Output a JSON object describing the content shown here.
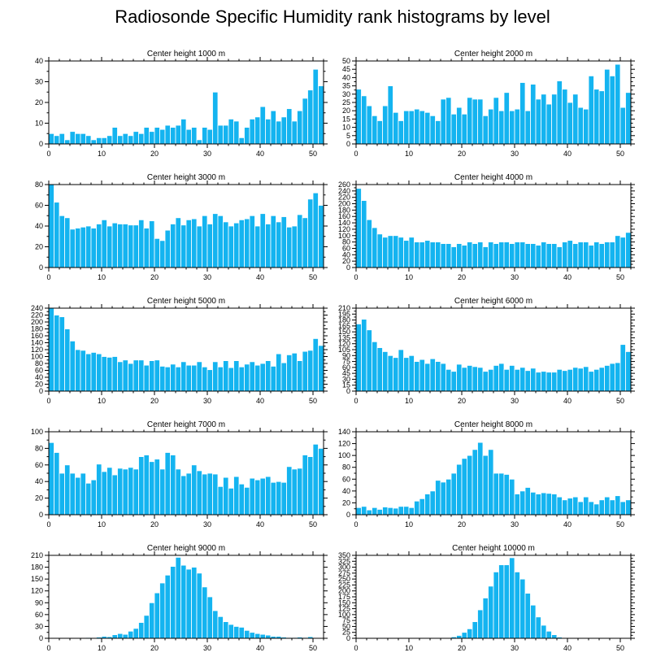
{
  "page": {
    "title": "Radiosonde Specific Humidity rank histograms by level"
  },
  "style": {
    "bar_color": "#14B4F0",
    "bar_edge": "#ffffff",
    "axis_color": "#000000"
  },
  "chart_data": [
    {
      "type": "bar",
      "title": "Center height 1000 m",
      "xlim": [
        0,
        52
      ],
      "xticks": [
        0,
        10,
        20,
        30,
        40,
        50
      ],
      "ylim": [
        0,
        40
      ],
      "yticks": [
        0,
        10,
        20,
        30,
        40
      ],
      "values": [
        5,
        4,
        5,
        2,
        6,
        5,
        5,
        4,
        2,
        3,
        3,
        4,
        8,
        4,
        5,
        4,
        6,
        5,
        8,
        6,
        8,
        7,
        9,
        8,
        9,
        12,
        7,
        8,
        2,
        8,
        7,
        25,
        9,
        9,
        12,
        11,
        3,
        8,
        12,
        13,
        18,
        12,
        16,
        11,
        13,
        17,
        11,
        16,
        22,
        26,
        36,
        28
      ]
    },
    {
      "type": "bar",
      "title": "Center height 2000 m",
      "xlim": [
        0,
        52
      ],
      "xticks": [
        0,
        10,
        20,
        30,
        40,
        50
      ],
      "ylim": [
        0,
        50
      ],
      "yticks": [
        0,
        5,
        10,
        15,
        20,
        25,
        30,
        35,
        40,
        45,
        50
      ],
      "values": [
        33,
        29,
        23,
        17,
        14,
        23,
        35,
        19,
        14,
        20,
        20,
        21,
        20,
        19,
        17,
        14,
        27,
        28,
        18,
        22,
        18,
        28,
        27,
        27,
        17,
        21,
        28,
        20,
        31,
        20,
        21,
        37,
        20,
        36,
        27,
        30,
        24,
        30,
        38,
        33,
        25,
        30,
        22,
        21,
        41,
        33,
        32,
        45,
        41,
        48,
        22,
        31
      ]
    },
    {
      "type": "bar",
      "title": "Center height 3000 m",
      "xlim": [
        0,
        52
      ],
      "xticks": [
        0,
        10,
        20,
        30,
        40,
        50
      ],
      "ylim": [
        0,
        80
      ],
      "yticks": [
        0,
        20,
        40,
        60,
        80
      ],
      "values": [
        80,
        63,
        50,
        48,
        37,
        38,
        39,
        40,
        38,
        42,
        46,
        40,
        43,
        42,
        42,
        41,
        41,
        46,
        38,
        45,
        28,
        26,
        36,
        42,
        48,
        41,
        46,
        47,
        40,
        50,
        42,
        52,
        50,
        44,
        40,
        43,
        46,
        47,
        50,
        40,
        52,
        42,
        50,
        44,
        49,
        39,
        40,
        51,
        48,
        66,
        72,
        60
      ]
    },
    {
      "type": "bar",
      "title": "Center height 4000 m",
      "xlim": [
        0,
        52
      ],
      "xticks": [
        0,
        10,
        20,
        30,
        40,
        50
      ],
      "ylim": [
        0,
        260
      ],
      "yticks": [
        0,
        20,
        40,
        60,
        80,
        100,
        120,
        140,
        160,
        180,
        200,
        220,
        240,
        260
      ],
      "values": [
        248,
        210,
        150,
        125,
        105,
        95,
        100,
        100,
        95,
        85,
        95,
        80,
        80,
        85,
        80,
        80,
        75,
        75,
        65,
        75,
        70,
        80,
        75,
        80,
        65,
        80,
        75,
        80,
        80,
        75,
        80,
        80,
        75,
        75,
        70,
        80,
        75,
        75,
        65,
        80,
        85,
        75,
        80,
        80,
        70,
        80,
        75,
        80,
        80,
        100,
        95,
        110
      ]
    },
    {
      "type": "bar",
      "title": "Center height 5000 m",
      "xlim": [
        0,
        52
      ],
      "xticks": [
        0,
        10,
        20,
        30,
        40,
        50
      ],
      "ylim": [
        0,
        240
      ],
      "yticks": [
        0,
        20,
        40,
        60,
        80,
        100,
        120,
        140,
        160,
        180,
        200,
        220,
        240
      ],
      "values": [
        240,
        220,
        215,
        180,
        145,
        120,
        118,
        108,
        112,
        108,
        100,
        98,
        100,
        85,
        90,
        80,
        90,
        90,
        75,
        88,
        90,
        72,
        70,
        78,
        70,
        85,
        75,
        75,
        85,
        70,
        62,
        85,
        70,
        88,
        68,
        88,
        70,
        78,
        85,
        75,
        80,
        88,
        72,
        108,
        82,
        105,
        110,
        88,
        115,
        118,
        152,
        132
      ]
    },
    {
      "type": "bar",
      "title": "Center height 6000 m",
      "xlim": [
        0,
        52
      ],
      "xticks": [
        0,
        10,
        20,
        30,
        40,
        50
      ],
      "ylim": [
        0,
        210
      ],
      "yticks": [
        0,
        15,
        30,
        45,
        60,
        75,
        90,
        105,
        120,
        135,
        150,
        165,
        180,
        195,
        210
      ],
      "values": [
        170,
        182,
        155,
        125,
        110,
        100,
        90,
        85,
        105,
        85,
        90,
        75,
        80,
        70,
        82,
        75,
        70,
        55,
        50,
        68,
        60,
        65,
        62,
        60,
        50,
        55,
        65,
        70,
        55,
        65,
        55,
        60,
        52,
        58,
        48,
        50,
        48,
        48,
        55,
        52,
        55,
        60,
        58,
        62,
        50,
        55,
        60,
        65,
        70,
        72,
        118,
        100
      ]
    },
    {
      "type": "bar",
      "title": "Center height 7000 m",
      "xlim": [
        0,
        52
      ],
      "xticks": [
        0,
        10,
        20,
        30,
        40,
        50
      ],
      "ylim": [
        0,
        100
      ],
      "yticks": [
        0,
        20,
        40,
        60,
        80,
        100
      ],
      "values": [
        87,
        75,
        50,
        60,
        50,
        45,
        50,
        38,
        42,
        61,
        52,
        57,
        48,
        56,
        55,
        57,
        55,
        70,
        72,
        64,
        67,
        55,
        75,
        72,
        55,
        47,
        50,
        60,
        53,
        49,
        50,
        49,
        34,
        45,
        32,
        46,
        37,
        33,
        44,
        42,
        44,
        46,
        39,
        40,
        39,
        58,
        55,
        56,
        72,
        70,
        85,
        80
      ]
    },
    {
      "type": "bar",
      "title": "Center height 8000 m",
      "xlim": [
        0,
        52
      ],
      "xticks": [
        0,
        10,
        20,
        30,
        40,
        50
      ],
      "ylim": [
        0,
        140
      ],
      "yticks": [
        0,
        20,
        40,
        60,
        80,
        100,
        120,
        140
      ],
      "values": [
        12,
        14,
        8,
        12,
        9,
        13,
        12,
        11,
        14,
        14,
        12,
        23,
        27,
        35,
        40,
        58,
        55,
        60,
        70,
        85,
        95,
        100,
        110,
        122,
        100,
        110,
        70,
        70,
        68,
        60,
        35,
        40,
        46,
        38,
        35,
        37,
        36,
        35,
        30,
        25,
        28,
        30,
        22,
        30,
        22,
        18,
        25,
        30,
        25,
        32,
        22,
        25
      ]
    },
    {
      "type": "bar",
      "title": "Center height 9000 m",
      "xlim": [
        0,
        52
      ],
      "xticks": [
        0,
        10,
        20,
        30,
        40,
        50
      ],
      "ylim": [
        0,
        210
      ],
      "yticks": [
        0,
        30,
        60,
        90,
        120,
        150,
        180,
        210
      ],
      "values": [
        0,
        0,
        0,
        0,
        0,
        1,
        1,
        2,
        1,
        3,
        5,
        4,
        9,
        12,
        10,
        18,
        25,
        40,
        58,
        90,
        115,
        140,
        160,
        182,
        205,
        185,
        175,
        180,
        165,
        130,
        105,
        70,
        55,
        42,
        35,
        30,
        28,
        20,
        15,
        12,
        10,
        8,
        5,
        5,
        3,
        2,
        2,
        3,
        2,
        4,
        1,
        1
      ]
    },
    {
      "type": "bar",
      "title": "Center height 10000 m",
      "xlim": [
        0,
        52
      ],
      "xticks": [
        0,
        10,
        20,
        30,
        40,
        50
      ],
      "ylim": [
        0,
        350
      ],
      "yticks": [
        0,
        25,
        50,
        75,
        100,
        125,
        150,
        175,
        200,
        225,
        250,
        275,
        300,
        325,
        350
      ],
      "values": [
        0,
        0,
        0,
        0,
        0,
        0,
        0,
        0,
        0,
        0,
        0,
        0,
        0,
        0,
        0,
        1,
        2,
        3,
        6,
        12,
        25,
        40,
        70,
        120,
        170,
        220,
        280,
        310,
        310,
        340,
        280,
        250,
        190,
        140,
        90,
        55,
        30,
        15,
        5,
        3,
        1,
        1,
        0,
        0,
        0,
        0,
        0,
        0,
        0,
        0,
        0,
        0
      ]
    }
  ]
}
